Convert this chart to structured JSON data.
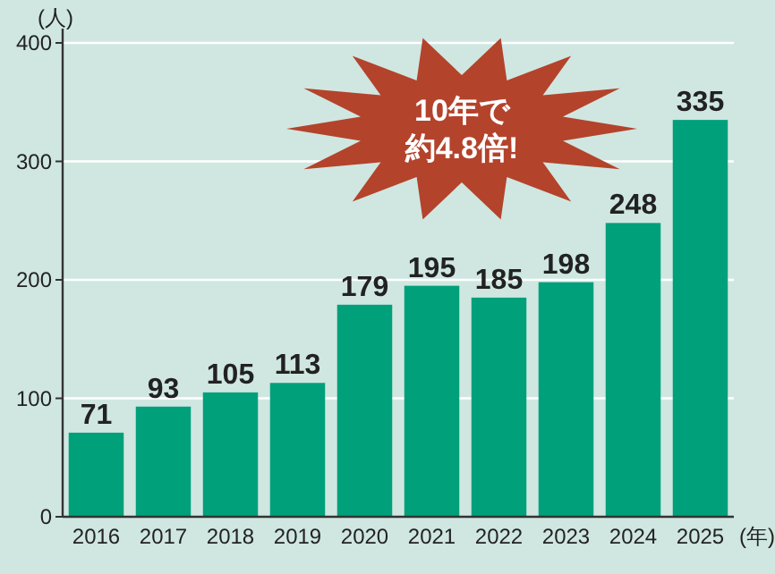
{
  "chart_data": {
    "type": "bar",
    "categories": [
      "2016",
      "2017",
      "2018",
      "2019",
      "2020",
      "2021",
      "2022",
      "2023",
      "2024",
      "2025"
    ],
    "values": [
      71,
      93,
      105,
      113,
      179,
      195,
      185,
      198,
      248,
      335
    ],
    "color": "#00a07b",
    "ylim": [
      0,
      400
    ],
    "yticks": [
      0,
      100,
      200,
      300,
      400
    ],
    "ylabel": "(人)",
    "xlabel": "(年)",
    "grid": "y",
    "data_labels": true,
    "annotations": [
      "10年で",
      "約4.8倍!"
    ]
  }
}
